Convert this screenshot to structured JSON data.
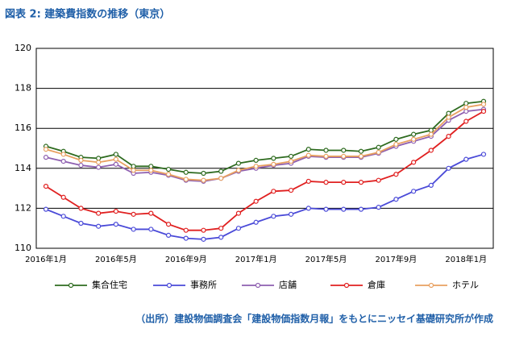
{
  "chart_data": {
    "type": "line",
    "title": "図表 2: 建築費指数の推移（東京）",
    "source": "（出所）建設物価調査会「建設物価指数月報」をもとにニッセイ基礎研究所が作成",
    "categories": [
      "2016年1月",
      null,
      null,
      null,
      "2016年5月",
      null,
      null,
      null,
      "2016年9月",
      null,
      null,
      null,
      "2017年1月",
      null,
      null,
      null,
      "2017年5月",
      null,
      null,
      null,
      "2017年9月",
      null,
      null,
      null,
      "2018年1月",
      null
    ],
    "ylim": [
      110,
      120
    ],
    "yticks": [
      110,
      112,
      114,
      116,
      118,
      120
    ],
    "grid": true,
    "legend": "bottom",
    "series": [
      {
        "name": "集合住宅",
        "color": "#2e6b1f",
        "values": [
          115.1,
          114.85,
          114.55,
          114.5,
          114.7,
          114.1,
          114.1,
          113.95,
          113.8,
          113.75,
          113.85,
          114.25,
          114.4,
          114.5,
          114.6,
          114.95,
          114.9,
          114.9,
          114.85,
          115.05,
          115.45,
          115.7,
          115.9,
          116.75,
          117.25,
          117.35
        ]
      },
      {
        "name": "事務所",
        "color": "#4a4ad8",
        "values": [
          111.95,
          111.6,
          111.25,
          111.1,
          111.2,
          110.95,
          110.95,
          110.65,
          110.5,
          110.45,
          110.55,
          111.0,
          111.3,
          111.6,
          111.7,
          112.0,
          111.95,
          111.95,
          111.95,
          112.05,
          112.45,
          112.85,
          113.15,
          114.0,
          114.45,
          114.7
        ]
      },
      {
        "name": "店舗",
        "color": "#8e5fb0",
        "values": [
          114.55,
          114.35,
          114.15,
          114.05,
          114.2,
          113.75,
          113.8,
          113.65,
          113.4,
          113.35,
          113.5,
          113.85,
          114.0,
          114.15,
          114.25,
          114.6,
          114.55,
          114.55,
          114.55,
          114.75,
          115.1,
          115.35,
          115.6,
          116.4,
          116.85,
          116.95
        ]
      },
      {
        "name": "倉庫",
        "color": "#e02020",
        "values": [
          113.1,
          112.55,
          112.0,
          111.75,
          111.85,
          111.7,
          111.75,
          111.2,
          110.9,
          110.9,
          111.0,
          111.75,
          112.35,
          112.85,
          112.9,
          113.35,
          113.3,
          113.3,
          113.3,
          113.4,
          113.7,
          114.3,
          114.9,
          115.6,
          116.35,
          116.85
        ]
      },
      {
        "name": "ホテル",
        "color": "#e8a060",
        "values": [
          114.95,
          114.7,
          114.4,
          114.3,
          114.45,
          113.9,
          113.9,
          113.7,
          113.45,
          113.4,
          113.5,
          113.9,
          114.1,
          114.2,
          114.35,
          114.65,
          114.6,
          114.6,
          114.6,
          114.8,
          115.2,
          115.45,
          115.7,
          116.55,
          117.05,
          117.2
        ]
      }
    ]
  }
}
